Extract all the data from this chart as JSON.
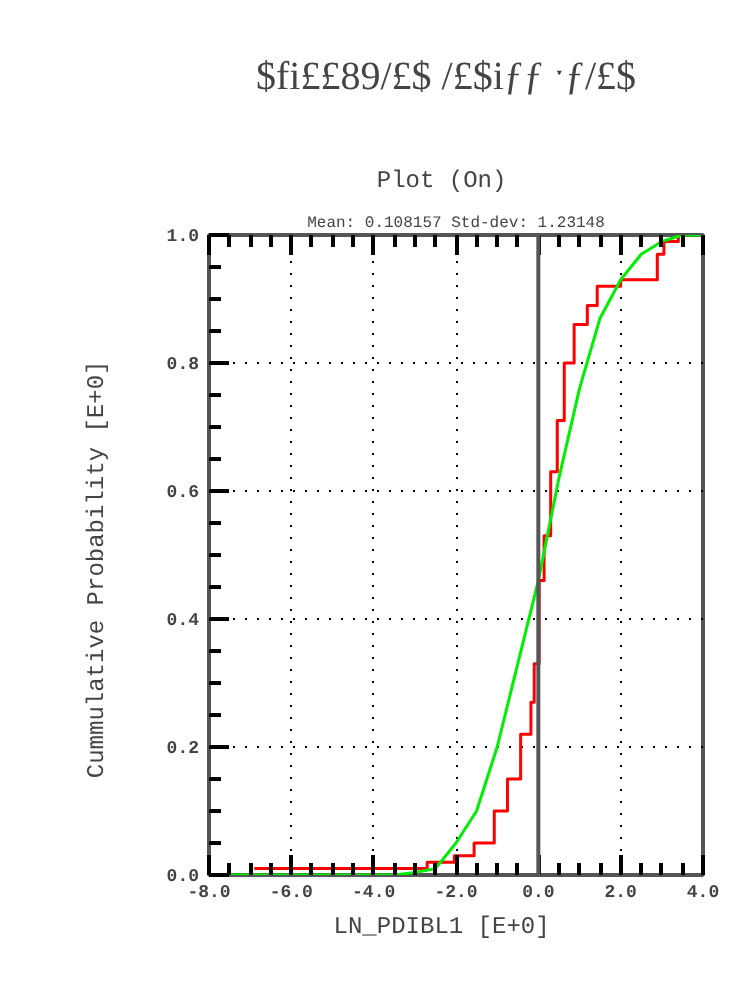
{
  "chart_data": {
    "type": "step",
    "title": "Plot   (On)",
    "subtitle": "Mean: 0.108157 Std-dev: 1.23148",
    "annotations": [
      "$fi££89/£$  /£$iƒƒ  ˑƒ/£$"
    ],
    "xlabel": "LN_PDIBL1   [E+0]",
    "ylabel": "Cummulative Probability   [E+0]",
    "series": [
      {
        "color": "#ff0000",
        "x": [
          -6.9,
          -2.7,
          -2.04,
          -1.56,
          -1.07,
          -0.75,
          -0.43,
          -0.18,
          -0.1,
          0.02,
          0.14,
          0.3,
          0.46,
          0.63,
          0.87,
          1.19,
          1.43,
          2.0,
          2.89,
          3.05,
          3.4
        ],
        "values": [
          0.01,
          0.02,
          0.03,
          0.05,
          0.1,
          0.15,
          0.22,
          0.27,
          0.33,
          0.46,
          0.53,
          0.63,
          0.71,
          0.8,
          0.86,
          0.89,
          0.92,
          0.93,
          0.97,
          0.99,
          1.0
        ]
      },
      {
        "type": "line",
        "color": "#00ee00",
        "x": [
          -8.0,
          -3.5,
          -3.0,
          -2.5,
          -2.0,
          -1.5,
          -1.0,
          -0.5,
          0.0,
          0.5,
          1.0,
          1.5,
          2.0,
          2.5,
          3.0,
          3.5,
          4.0
        ],
        "values": [
          0.0,
          0.0,
          0.004,
          0.01,
          0.05,
          0.1,
          0.2,
          0.33,
          0.46,
          0.62,
          0.76,
          0.87,
          0.93,
          0.97,
          0.99,
          1.0,
          1.0
        ]
      }
    ],
    "xlim": [
      -8.0,
      4.0
    ],
    "ylim": [
      0.0,
      1.0
    ],
    "xticks": [
      {
        "value": -8,
        "label": "-8.0"
      },
      {
        "value": -6,
        "label": "-6.0"
      },
      {
        "value": -4,
        "label": "-4.0"
      },
      {
        "value": -2,
        "label": "-2.0"
      },
      {
        "value": 0,
        "label": "0.0"
      },
      {
        "value": 2,
        "label": "2.0"
      },
      {
        "value": 4,
        "label": "4.0"
      }
    ],
    "yticks": [
      {
        "value": 0,
        "label": "0.0"
      },
      {
        "value": 0.2,
        "label": "0.2"
      },
      {
        "value": 0.4,
        "label": "0.4"
      },
      {
        "value": 0.6,
        "label": "0.6"
      },
      {
        "value": 0.8,
        "label": "0.8"
      },
      {
        "value": 1,
        "label": "1.0"
      }
    ],
    "ref_lines": [
      {
        "axis": "x",
        "value": 0,
        "color": "#555555",
        "line_style": "solid"
      }
    ],
    "grid": true
  }
}
